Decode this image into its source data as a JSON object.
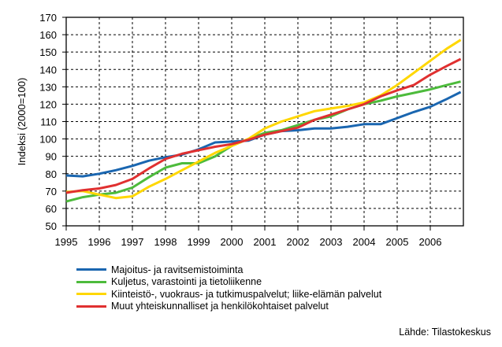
{
  "chart_data": {
    "type": "line",
    "title": "",
    "xlabel": "",
    "ylabel": "Indeksi (2000=100)",
    "xlim": [
      1995,
      2007
    ],
    "ylim": [
      50,
      170
    ],
    "y_ticks": [
      "50",
      "60",
      "70",
      "80",
      "90",
      "100",
      "110",
      "120",
      "130",
      "140",
      "150",
      "160",
      "170"
    ],
    "x_ticks": [
      "1995",
      "1996",
      "1997",
      "1998",
      "1999",
      "2000",
      "2001",
      "2002",
      "2003",
      "2004",
      "2005",
      "2006"
    ],
    "grid": true,
    "legend_position": "bottom",
    "x": [
      1995,
      1995.5,
      1996,
      1996.5,
      1997,
      1997.5,
      1998,
      1998.5,
      1999,
      1999.5,
      2000,
      2000.5,
      2001,
      2001.5,
      2002,
      2002.5,
      2003,
      2003.5,
      2004,
      2004.5,
      2005,
      2005.5,
      2006,
      2006.5,
      2006.92
    ],
    "series": [
      {
        "name": "Majoitus- ja ravitsemistoiminta",
        "color": "#1a66b0",
        "values": [
          79,
          78.5,
          80,
          82,
          84.5,
          87.5,
          89.5,
          91,
          94,
          98,
          98.5,
          99,
          102.5,
          104.5,
          105,
          106,
          106,
          107,
          108.5,
          108.5,
          112,
          115.5,
          118.5,
          123,
          127
        ]
      },
      {
        "name": "Kuljetus, varastointi ja tietoliikenne",
        "color": "#4dbb3c",
        "values": [
          64,
          66.5,
          68,
          69,
          72,
          78,
          83.5,
          86,
          86,
          90,
          96,
          100,
          103.5,
          105,
          108,
          111,
          113,
          117,
          120,
          122,
          124.5,
          126.5,
          128.5,
          131,
          133
        ]
      },
      {
        "name": "Kiinteistö-, vuokraus- ja tutkimuspalvelut; liike-elämän palvelut",
        "color": "#ffd700",
        "values": [
          69.5,
          70,
          68,
          66,
          67,
          72.5,
          77,
          82,
          87,
          92,
          96,
          100,
          106,
          110,
          113,
          116,
          117.5,
          119,
          121,
          125,
          131,
          138,
          145,
          152,
          157
        ]
      },
      {
        "name": "Muut yhteiskunnalliset ja henkilökohtaiset palvelut",
        "color": "#e03030",
        "values": [
          69,
          70.5,
          71.5,
          73.5,
          77,
          83,
          88.5,
          91.5,
          93.5,
          95.5,
          97,
          99.5,
          102.5,
          104.5,
          106.5,
          111,
          114,
          117,
          120,
          124.5,
          128,
          131,
          137,
          142,
          146
        ]
      }
    ],
    "source": "Lähde: Tilastokeskus"
  }
}
